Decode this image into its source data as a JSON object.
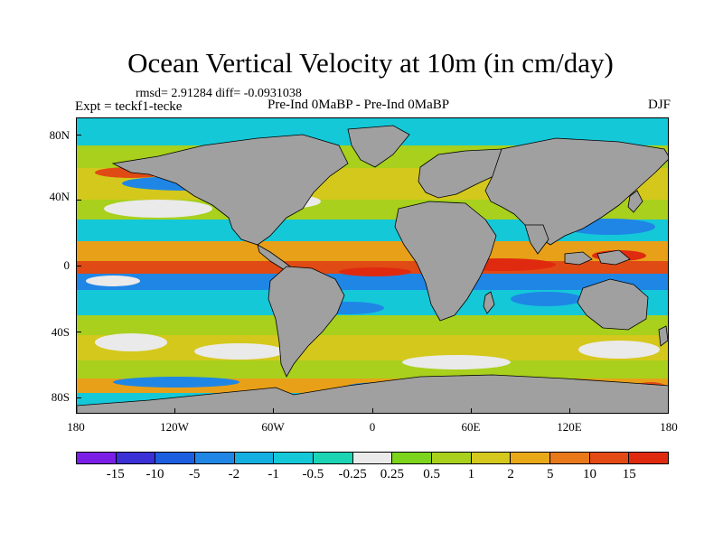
{
  "title": "Ocean Vertical Velocity at 10m (in cm/day)",
  "stats": "rmsd= 2.91284 diff= -0.0931038",
  "experiment": "Expt = teckf1-tecke",
  "comparison": "Pre-Ind 0MaBP - Pre-Ind 0MaBP",
  "season": "DJF",
  "y_axis_labels": [
    "80N",
    "40N",
    "0",
    "40S",
    "80S"
  ],
  "x_axis_labels": [
    "180",
    "120W",
    "60W",
    "0",
    "60E",
    "120E",
    "180"
  ],
  "colorbar": {
    "labels": [
      "-15",
      "-10",
      "-5",
      "-2",
      "-1",
      "-0.5",
      "-0.25",
      "0.25",
      "0.5",
      "1",
      "2",
      "5",
      "10",
      "15"
    ],
    "colors": [
      "#7b1fe6",
      "#3b2fd6",
      "#1b5fe0",
      "#1f86e6",
      "#14aee0",
      "#14c8d8",
      "#1cd4b4",
      "#eaeaea",
      "#7cd41c",
      "#a8d01c",
      "#d4c81c",
      "#e8a818",
      "#e87818",
      "#e44a14",
      "#e02a10"
    ]
  },
  "map": {
    "land_color": "#a0a0a0",
    "ocean_colors": {
      "upwelling_strong": "#e04a14",
      "upwelling": "#e8a018",
      "positive_weak": "#a8d01c",
      "neutral": "#eaeaea",
      "negative_weak": "#14c8d8",
      "downwelling": "#1f86e6"
    }
  }
}
